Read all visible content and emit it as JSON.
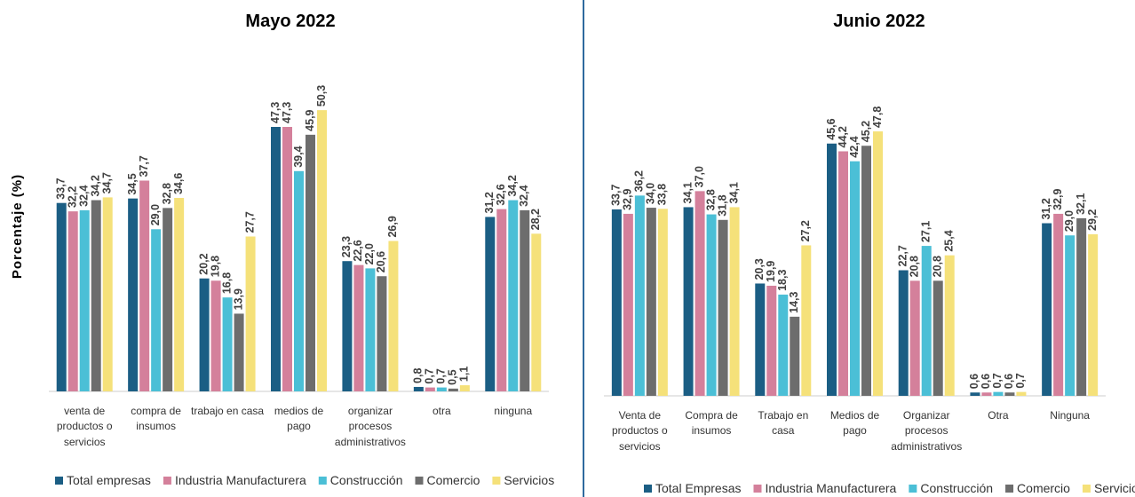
{
  "chart_data": [
    {
      "type": "bar",
      "title": "Mayo 2022",
      "y_label": "Porcentaje (%)",
      "categories": [
        "venta de productos o servicios",
        "compra de insumos",
        "trabajo en casa",
        "medios de pago",
        "organizar procesos administrativos",
        "otra",
        "ninguna"
      ],
      "ylim": [
        0,
        60
      ],
      "series": [
        {
          "name": "Total empresas",
          "color": "#1b5e84",
          "values": [
            33.7,
            34.5,
            20.2,
            47.3,
            23.3,
            0.8,
            31.2
          ],
          "value_labels": [
            "33,7",
            "34,5",
            "20,2",
            "47,3",
            "23,3",
            "0,8",
            "31,2"
          ]
        },
        {
          "name": "Industria Manufacturera",
          "color": "#d4809b",
          "values": [
            32.2,
            37.7,
            19.8,
            47.3,
            22.6,
            0.7,
            32.6
          ],
          "value_labels": [
            "32,2",
            "37,7",
            "19,8",
            "47,3",
            "22,6",
            "0,7",
            "32,6"
          ]
        },
        {
          "name": "Construcción",
          "color": "#4bbfd6",
          "values": [
            32.4,
            29.0,
            16.8,
            39.4,
            22.0,
            0.7,
            34.2
          ],
          "value_labels": [
            "32,4",
            "29,0",
            "16,8",
            "39,4",
            "22,0",
            "0,7",
            "34,2"
          ]
        },
        {
          "name": "Comercio",
          "color": "#6d6d6d",
          "values": [
            34.2,
            32.8,
            13.9,
            45.9,
            20.6,
            0.5,
            32.4
          ],
          "value_labels": [
            "34,2",
            "32,8",
            "13,9",
            "45,9",
            "20,6",
            "0,5",
            "32,4"
          ]
        },
        {
          "name": "Servicios",
          "color": "#f5e17a",
          "values": [
            34.7,
            34.6,
            27.7,
            50.3,
            26.9,
            1.1,
            28.2
          ],
          "value_labels": [
            "34,7",
            "34,6",
            "27,7",
            "50,3",
            "26,9",
            "1,1",
            "28,2"
          ]
        }
      ]
    },
    {
      "type": "bar",
      "title": "Junio 2022",
      "categories": [
        "Venta de productos o servicios",
        "Compra de insumos",
        "Trabajo en casa",
        "Medios de pago",
        "Organizar procesos administrativos",
        "Otra",
        "Ninguna"
      ],
      "ylim": [
        0,
        60
      ],
      "series": [
        {
          "name": "Total Empresas",
          "color": "#1b5e84",
          "values": [
            33.7,
            34.1,
            20.3,
            45.6,
            22.7,
            0.6,
            31.2
          ],
          "value_labels": [
            "33,7",
            "34,1",
            "20,3",
            "45,6",
            "22,7",
            "0,6",
            "31,2"
          ]
        },
        {
          "name": "Industria Manufacturera",
          "color": "#d4809b",
          "values": [
            32.9,
            37.0,
            19.9,
            44.2,
            20.8,
            0.6,
            32.9
          ],
          "value_labels": [
            "32,9",
            "37,0",
            "19,9",
            "44,2",
            "20,8",
            "0,6",
            "32,9"
          ]
        },
        {
          "name": "Construcción",
          "color": "#4bbfd6",
          "values": [
            36.2,
            32.8,
            18.3,
            42.4,
            27.1,
            0.7,
            29.0
          ],
          "value_labels": [
            "36,2",
            "32,8",
            "18,3",
            "42,4",
            "27,1",
            "0,7",
            "29,0"
          ]
        },
        {
          "name": "Comercio",
          "color": "#6d6d6d",
          "values": [
            34.0,
            31.8,
            14.3,
            45.2,
            20.8,
            0.6,
            32.1
          ],
          "value_labels": [
            "34,0",
            "31,8",
            "14,3",
            "45,2",
            "20,8",
            "0,6",
            "32,1"
          ]
        },
        {
          "name": "Servicios",
          "color": "#f5e17a",
          "values": [
            33.8,
            34.1,
            27.2,
            47.8,
            25.4,
            0.7,
            29.2
          ],
          "value_labels": [
            "33,8",
            "34,1",
            "27,2",
            "47,8",
            "25,4",
            "0,7",
            "29,2"
          ]
        }
      ]
    }
  ]
}
